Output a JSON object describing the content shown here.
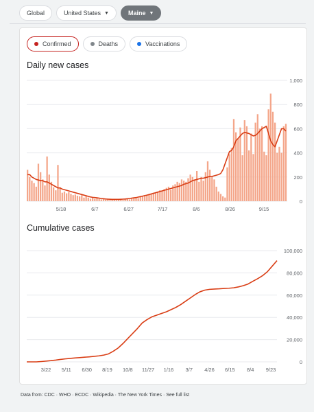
{
  "location_chips": [
    {
      "label": "Global"
    },
    {
      "label": "United States"
    },
    {
      "label": "Maine"
    }
  ],
  "metric_chips": [
    {
      "label": "Confirmed",
      "color": "#c5221f"
    },
    {
      "label": "Deaths",
      "color": "#80868b"
    },
    {
      "label": "Vaccinations",
      "color": "#1a73e8"
    }
  ],
  "footer": "Data from: CDC · WHO · ECDC · Wikipedia · The New York Times · See full list",
  "colors": {
    "bar": "#f4a68a",
    "line": "#d93d14"
  },
  "chart_data": [
    {
      "type": "bar",
      "title": "Daily new cases",
      "x_tick_labels": [
        "5/18",
        "6/7",
        "6/27",
        "7/17",
        "8/6",
        "8/26",
        "9/15"
      ],
      "y_tick_labels": [
        "0",
        "200",
        "400",
        "600",
        "800",
        "1,000"
      ],
      "ylim": [
        0,
        1000
      ],
      "grid": true,
      "values": [
        260,
        200,
        170,
        150,
        120,
        310,
        240,
        180,
        130,
        370,
        220,
        160,
        115,
        90,
        300,
        115,
        70,
        80,
        65,
        75,
        60,
        50,
        55,
        45,
        40,
        50,
        30,
        40,
        30,
        20,
        30,
        20,
        25,
        18,
        15,
        20,
        12,
        15,
        10,
        12,
        15,
        10,
        15,
        12,
        10,
        15,
        20,
        15,
        20,
        25,
        30,
        25,
        35,
        40,
        50,
        45,
        55,
        60,
        70,
        65,
        80,
        90,
        85,
        100,
        110,
        120,
        95,
        130,
        140,
        160,
        150,
        180,
        170,
        160,
        190,
        220,
        200,
        180,
        250,
        160,
        200,
        170,
        240,
        330,
        260,
        200,
        180,
        120,
        80,
        60,
        40,
        30,
        280,
        390,
        440,
        680,
        570,
        520,
        610,
        380,
        670,
        620,
        420,
        560,
        390,
        650,
        720,
        600,
        620,
        410,
        380,
        760,
        890,
        740,
        650,
        400,
        450,
        400,
        620,
        640
      ],
      "series": [
        {
          "name": "7-day average",
          "values": [
            220,
            220,
            200,
            190,
            180,
            175,
            170,
            170,
            160,
            160,
            150,
            140,
            130,
            120,
            110,
            110,
            100,
            95,
            90,
            85,
            80,
            75,
            70,
            65,
            60,
            55,
            50,
            45,
            40,
            35,
            32,
            30,
            28,
            25,
            22,
            20,
            18,
            17,
            16,
            15,
            15,
            15,
            15,
            16,
            17,
            18,
            20,
            22,
            25,
            28,
            30,
            34,
            38,
            42,
            46,
            50,
            55,
            60,
            65,
            70,
            75,
            80,
            85,
            90,
            95,
            100,
            105,
            110,
            115,
            120,
            125,
            130,
            140,
            145,
            150,
            160,
            170,
            175,
            180,
            185,
            190,
            190,
            195,
            200,
            205,
            205,
            210,
            215,
            220,
            230,
            260,
            310,
            360,
            410,
            420,
            450,
            500,
            520,
            540,
            560,
            570,
            565,
            560,
            550,
            540,
            545,
            560,
            580,
            600,
            610,
            620,
            560,
            500,
            470,
            450,
            500,
            550,
            600,
            600,
            580
          ]
        }
      ]
    },
    {
      "type": "line",
      "title": "Cumulative cases",
      "x_tick_labels": [
        "3/22",
        "5/11",
        "6/30",
        "8/19",
        "10/8",
        "11/27",
        "1/16",
        "3/7",
        "4/26",
        "6/15",
        "8/4",
        "9/23"
      ],
      "y_tick_labels": [
        "0",
        "20,000",
        "40,000",
        "60,000",
        "80,000",
        "100,000"
      ],
      "ylim": [
        0,
        100000
      ],
      "grid": true,
      "series": [
        {
          "values": [
            0,
            0,
            0,
            300,
            700,
            1100,
            1600,
            2200,
            2700,
            3100,
            3500,
            3800,
            4200,
            4500,
            5000,
            5400,
            6100,
            7200,
            9600,
            12500,
            16500,
            21000,
            25500,
            30000,
            35000,
            38000,
            40500,
            42000,
            43500,
            45000,
            47000,
            49000,
            51500,
            54500,
            57500,
            60500,
            63000,
            64500,
            65200,
            65500,
            65700,
            66000,
            66200,
            66600,
            67400,
            68500,
            70000,
            72500,
            74800,
            77500,
            81000,
            86000,
            91000
          ]
        }
      ]
    }
  ]
}
